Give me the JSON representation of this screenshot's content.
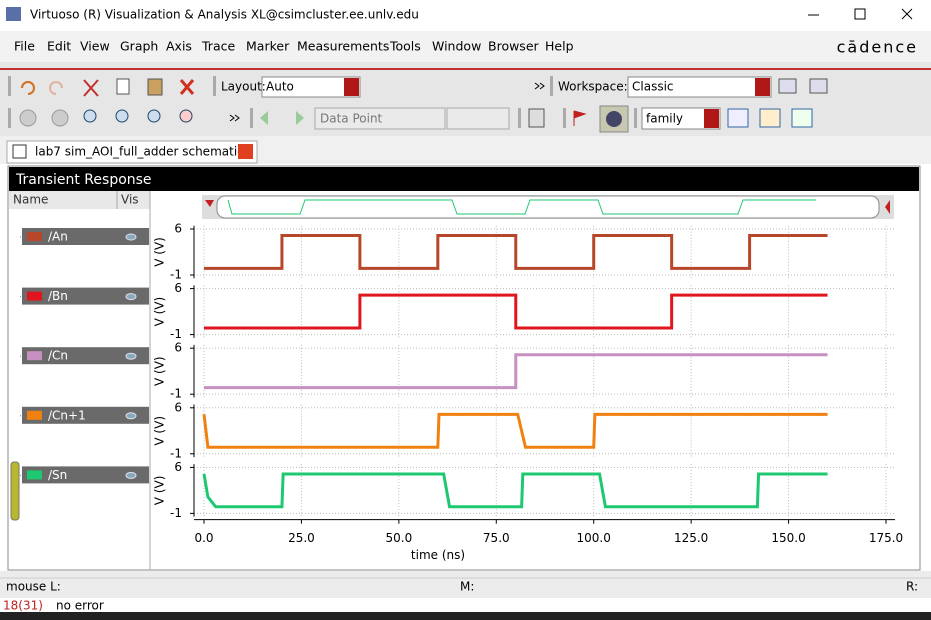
{
  "window": {
    "title": "Virtuoso (R) Visualization & Analysis XL@csimcluster.ee.unlv.edu",
    "brand": "cādence"
  },
  "menu": [
    "File",
    "Edit",
    "View",
    "Graph",
    "Axis",
    "Trace",
    "Marker",
    "Measurements",
    "Tools",
    "Window",
    "Browser",
    "Help"
  ],
  "toolbar": {
    "layout_label": "Layout:",
    "layout_value": "Auto",
    "workspace_label": "Workspace:",
    "workspace_value": "Classic",
    "data_point": "Data Point",
    "family": "family"
  },
  "tab": "lab7 sim_AOI_full_adder schematic",
  "panel": {
    "title": "Transient Response",
    "columns": [
      "Name",
      "Vis"
    ]
  },
  "chart_data": [
    {
      "type": "line",
      "ylabel": "V (V)",
      "ylim": [
        -1.5,
        6.5
      ],
      "yticks": [
        -1,
        6
      ],
      "xlim": [
        0,
        175
      ],
      "series": [
        {
          "name": "/An",
          "color": "#b7472a",
          "x": [
            0,
            20,
            20,
            40,
            40,
            60,
            60,
            80,
            80,
            100,
            100,
            120,
            120,
            140,
            140,
            160
          ],
          "values": [
            0,
            0,
            5,
            5,
            0,
            0,
            5,
            5,
            0,
            0,
            5,
            5,
            0,
            0,
            5,
            5
          ]
        }
      ]
    },
    {
      "type": "line",
      "ylabel": "V (V)",
      "ylim": [
        -1.5,
        6.5
      ],
      "yticks": [
        -1,
        6
      ],
      "xlim": [
        0,
        175
      ],
      "series": [
        {
          "name": "/Bn",
          "color": "#e0161e",
          "x": [
            0,
            40,
            40,
            80,
            80,
            120,
            120,
            160
          ],
          "values": [
            0,
            0,
            5,
            5,
            0,
            0,
            5,
            5
          ]
        }
      ]
    },
    {
      "type": "line",
      "ylabel": "V (V)",
      "ylim": [
        -1.5,
        6.5
      ],
      "yticks": [
        -1,
        6
      ],
      "xlim": [
        0,
        175
      ],
      "series": [
        {
          "name": "/Cn",
          "color": "#c890c0",
          "x": [
            0,
            80,
            80,
            160
          ],
          "values": [
            0,
            0,
            5,
            5
          ]
        }
      ]
    },
    {
      "type": "line",
      "ylabel": "V (V)",
      "ylim": [
        -1.5,
        6.5
      ],
      "yticks": [
        -1,
        6
      ],
      "xlim": [
        0,
        175
      ],
      "series": [
        {
          "name": "/Cn+1",
          "color": "#f08010",
          "x": [
            0,
            1,
            60,
            60.3,
            80.5,
            82.5,
            100,
            100.3,
            160
          ],
          "values": [
            5,
            0,
            0,
            5,
            5,
            0,
            0,
            5,
            5
          ]
        }
      ]
    },
    {
      "type": "line",
      "ylabel": "V (V)",
      "ylim": [
        -1.5,
        6.5
      ],
      "yticks": [
        -1,
        6
      ],
      "xlim": [
        0,
        175
      ],
      "xlabel": "time (ns)",
      "xticks": [
        {
          "value": 0,
          "label": "0.0"
        },
        {
          "value": 25,
          "label": "25.0"
        },
        {
          "value": 50,
          "label": "50.0"
        },
        {
          "value": 75,
          "label": "75.0"
        },
        {
          "value": 100,
          "label": "100.0"
        },
        {
          "value": 125,
          "label": "125.0"
        },
        {
          "value": 150,
          "label": "150.0"
        },
        {
          "value": 175,
          "label": "175.0"
        }
      ],
      "series": [
        {
          "name": "/Sn",
          "color": "#1ec870",
          "x": [
            0,
            1,
            3,
            20,
            20.3,
            61.5,
            63,
            81.5,
            81.8,
            101.5,
            103,
            142,
            142.3,
            160
          ],
          "values": [
            5,
            1.5,
            0,
            0,
            5,
            5,
            0,
            0,
            5,
            5,
            0,
            0,
            5,
            5
          ]
        }
      ]
    }
  ],
  "status": {
    "left": "mouse L:",
    "middle": "M:",
    "right": "R:",
    "counter": "18(31)",
    "message": "no error"
  }
}
